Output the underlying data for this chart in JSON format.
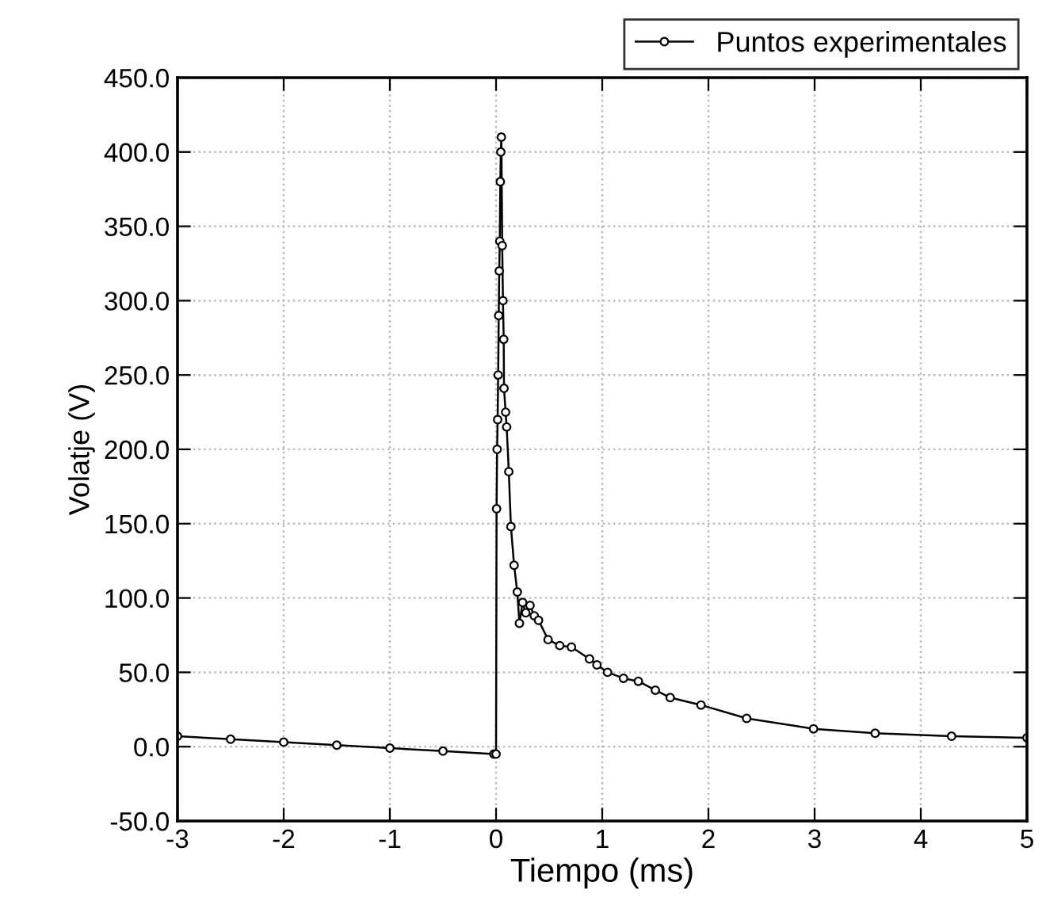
{
  "chart_data": {
    "type": "line",
    "xlabel": "Tiempo (ms)",
    "ylabel": "Volatje (V)",
    "series": [
      {
        "name": "Puntos experimentales",
        "color": "#000000",
        "x": [
          -3,
          -2.5,
          -2,
          -1.5,
          -1,
          -0.5,
          -0.02,
          0.0,
          0.005,
          0.01,
          0.015,
          0.02,
          0.025,
          0.03,
          0.035,
          0.04,
          0.045,
          0.05,
          0.058,
          0.065,
          0.072,
          0.075,
          0.09,
          0.1,
          0.12,
          0.14,
          0.17,
          0.2,
          0.22,
          0.25,
          0.28,
          0.32,
          0.36,
          0.4,
          0.49,
          0.6,
          0.71,
          0.88,
          0.95,
          1.05,
          1.2,
          1.34,
          1.5,
          1.64,
          1.93,
          2.36,
          2.99,
          3.57,
          4.29,
          5
        ],
        "values": [
          7,
          5,
          3,
          1,
          -1,
          -3,
          -5,
          -5,
          160,
          200,
          220,
          250,
          290,
          320,
          340,
          380,
          400,
          410,
          337,
          300,
          274,
          241,
          225,
          215,
          185,
          148,
          122,
          104,
          83,
          97,
          90,
          95,
          88,
          85,
          72,
          68,
          67,
          59,
          55,
          50,
          46,
          44,
          38,
          33,
          28,
          19,
          12,
          9,
          7,
          6
        ]
      }
    ],
    "xlim": [
      -3,
      5
    ],
    "xticks": [
      -3,
      -2,
      -1,
      0,
      1,
      2,
      3,
      4,
      5
    ],
    "ylim": [
      -50,
      450
    ],
    "yticks": [
      {
        "value": -50,
        "label": "-50.0"
      },
      {
        "value": 0,
        "label": "0.0"
      },
      {
        "value": 50,
        "label": "50.0"
      },
      {
        "value": 100,
        "label": "100.0"
      },
      {
        "value": 150,
        "label": "150.0"
      },
      {
        "value": 200,
        "label": "200.0"
      },
      {
        "value": 250,
        "label": "250.0"
      },
      {
        "value": 300,
        "label": "300.0"
      },
      {
        "value": 350,
        "label": "350.0"
      },
      {
        "value": 400,
        "label": "400.0"
      },
      {
        "value": 450,
        "label": "450.0"
      }
    ],
    "grid": true,
    "legend": "top right",
    "marker": "circle",
    "line_style": "solid"
  }
}
